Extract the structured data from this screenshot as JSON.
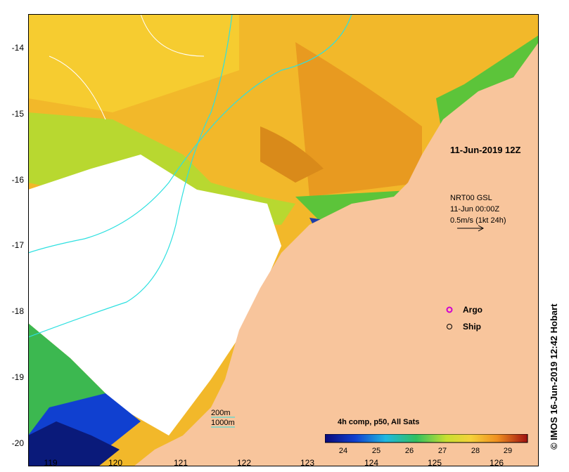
{
  "map": {
    "title": "11-Jun-2019 12Z",
    "y_ticks": [
      "-14",
      "-15",
      "-16",
      "-17",
      "-18",
      "-19",
      "-20"
    ],
    "x_ticks": [
      "119",
      "120",
      "121",
      "122",
      "123",
      "124",
      "125",
      "126"
    ],
    "current_legend": {
      "line1": "NRT00 GSL",
      "line2": "11-Jun 00:00Z",
      "line3": "0.5m/s (1kt 24h)"
    },
    "markers": {
      "argo_label": "Argo",
      "ship_label": "Ship"
    },
    "depth_legend": {
      "c200": "200m",
      "c1000": "1000m"
    },
    "colorbar": {
      "title": "4h comp, p50, All Sats",
      "ticks": [
        "24",
        "25",
        "26",
        "27",
        "28",
        "29"
      ]
    },
    "credit": "© IMOS 16-Jun-2019 12:42 Hobart",
    "colors": {
      "land": "#f8c59c",
      "sea_warm": "#f0a018",
      "sea_mid": "#f5d23a",
      "sea_cool": "#5cc43a",
      "sea_cold": "#1a2e9e",
      "contour": "#2ee0e0",
      "argo": "#d000d0"
    }
  }
}
